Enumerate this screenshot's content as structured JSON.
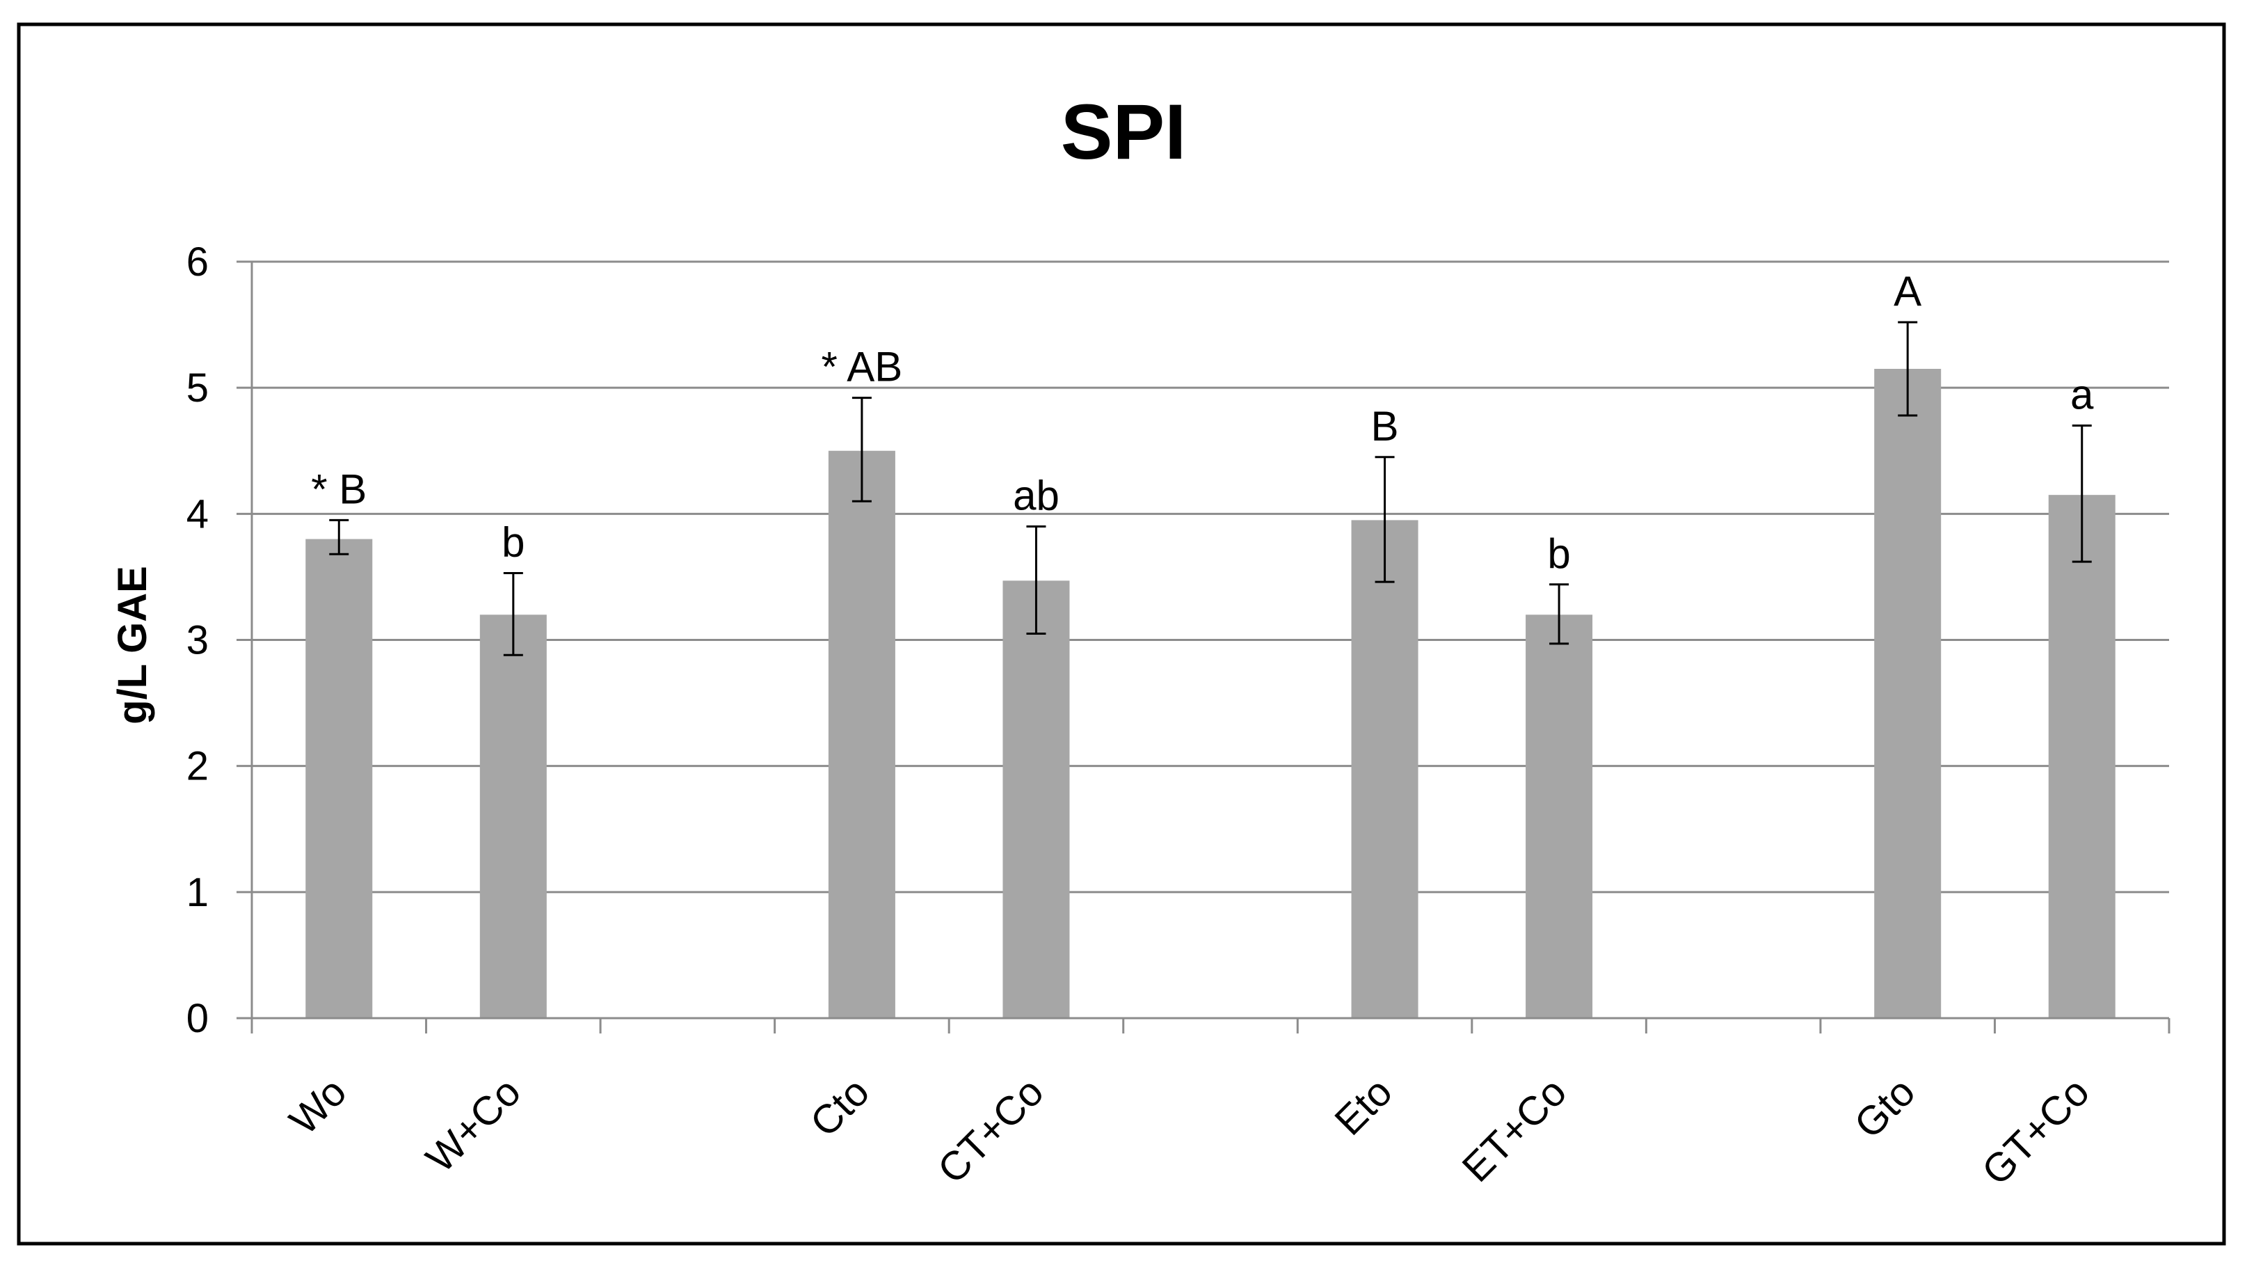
{
  "chart_data": {
    "type": "bar",
    "title": "SPI",
    "xlabel": "",
    "ylabel": "g/L GAE",
    "ylim": [
      0,
      6
    ],
    "yticks": [
      "0",
      "1",
      "2",
      "3",
      "4",
      "5",
      "6"
    ],
    "grid": true,
    "legend": "none",
    "categories": [
      "Wo",
      "W+Co",
      "",
      "Cto",
      "CT+Co",
      "",
      "Eto",
      "ET+Co",
      "",
      "Gto",
      "GT+Co"
    ],
    "values": [
      3.8,
      3.2,
      null,
      4.5,
      3.47,
      null,
      3.95,
      3.2,
      null,
      5.15,
      4.15
    ],
    "error_low": [
      3.68,
      2.88,
      null,
      4.1,
      3.05,
      null,
      3.46,
      2.97,
      null,
      4.78,
      3.62
    ],
    "error_high": [
      3.95,
      3.53,
      null,
      4.92,
      3.9,
      null,
      4.45,
      3.44,
      null,
      5.52,
      4.7
    ],
    "bar_labels": [
      "* B",
      "b",
      "",
      "* AB",
      "ab",
      "",
      "B",
      "b",
      "",
      "A",
      "a"
    ],
    "colors": {
      "bar": "#a6a6a6",
      "gridline": "#8c8c8c",
      "axis": "#8c8c8c",
      "error_bar": "#000000",
      "text": "#000000",
      "frame": "#000000"
    }
  }
}
